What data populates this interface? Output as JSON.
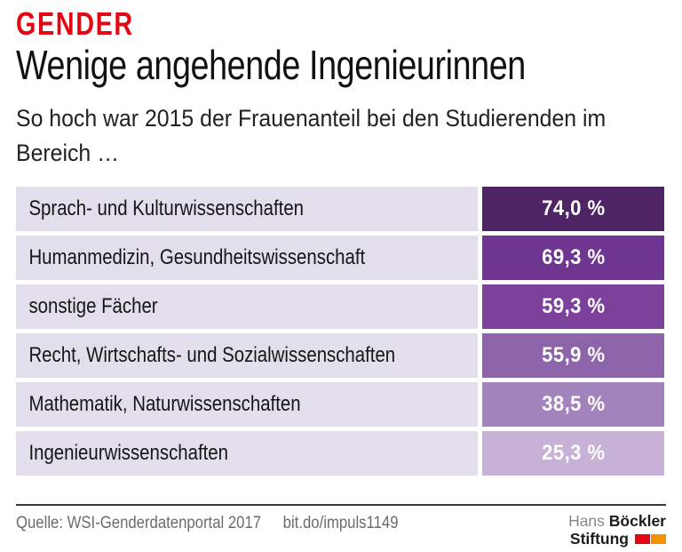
{
  "page": {
    "kicker": "GENDER",
    "title": "Wenige angehende Ingenieurinnen",
    "subtitle_line1": "So hoch war 2015 der Frauenanteil bei den Studierenden im",
    "subtitle_line2": "Bereich …"
  },
  "colors": {
    "kicker": "#e30613",
    "label_bg": "#e4ddec",
    "footer_text": "#6b6b6b",
    "rule": "#3c3c3c"
  },
  "rows": [
    {
      "label": "Sprach- und Kulturwissenschaften",
      "value_label": "74,0 %",
      "color": "#4e2465"
    },
    {
      "label": "Humanmedizin, Gesundheitswissenschaft",
      "value_label": "69,3 %",
      "color": "#6e3691"
    },
    {
      "label": "sonstige Fächer",
      "value_label": "59,3 %",
      "color": "#7c419b"
    },
    {
      "label": "Recht, Wirtschafts- und Sozialwissenschaften",
      "value_label": "55,9 %",
      "color": "#8d63aa"
    },
    {
      "label": "Mathematik, Naturwissenschaften",
      "value_label": "38,5 %",
      "color": "#a283bc"
    },
    {
      "label": "Ingenieurwissenschaften",
      "value_label": "25,3 %",
      "color": "#c7b1d6"
    }
  ],
  "footer": {
    "source": "Quelle: WSI-Genderdatenportal 2017",
    "link": "bit.do/impuls1149",
    "logo": {
      "name_regular": "Hans",
      "name_bold": "Böckler",
      "line2_bold": "Stiftung",
      "block_red": "#e30613",
      "block_orange": "#f39200"
    }
  },
  "chart_data": {
    "type": "bar",
    "title": "Wenige angehende Ingenieurinnen",
    "subtitle": "So hoch war 2015 der Frauenanteil bei den Studierenden im Bereich …",
    "kicker": "GENDER",
    "categories": [
      "Sprach- und Kulturwissenschaften",
      "Humanmedizin, Gesundheitswissenschaft",
      "sonstige Fächer",
      "Recht, Wirtschafts- und Sozialwissenschaften",
      "Mathematik, Naturwissenschaften",
      "Ingenieurwissenschaften"
    ],
    "values": [
      74.0,
      69.3,
      59.3,
      55.9,
      38.5,
      25.3
    ],
    "value_labels": [
      "74,0 %",
      "69,3 %",
      "59,3 %",
      "55,9 %",
      "38,5 %",
      "25,3 %"
    ],
    "unit": "%",
    "xlabel": "",
    "ylabel": "",
    "legend": false,
    "orientation": "horizontal",
    "note": "equal-width value cells; purple shade encodes value",
    "color_scale": [
      "#4e2465",
      "#6e3691",
      "#7c419b",
      "#8d63aa",
      "#a283bc",
      "#c7b1d6"
    ],
    "source": "Quelle: WSI-Genderdatenportal 2017",
    "link": "bit.do/impuls1149"
  }
}
